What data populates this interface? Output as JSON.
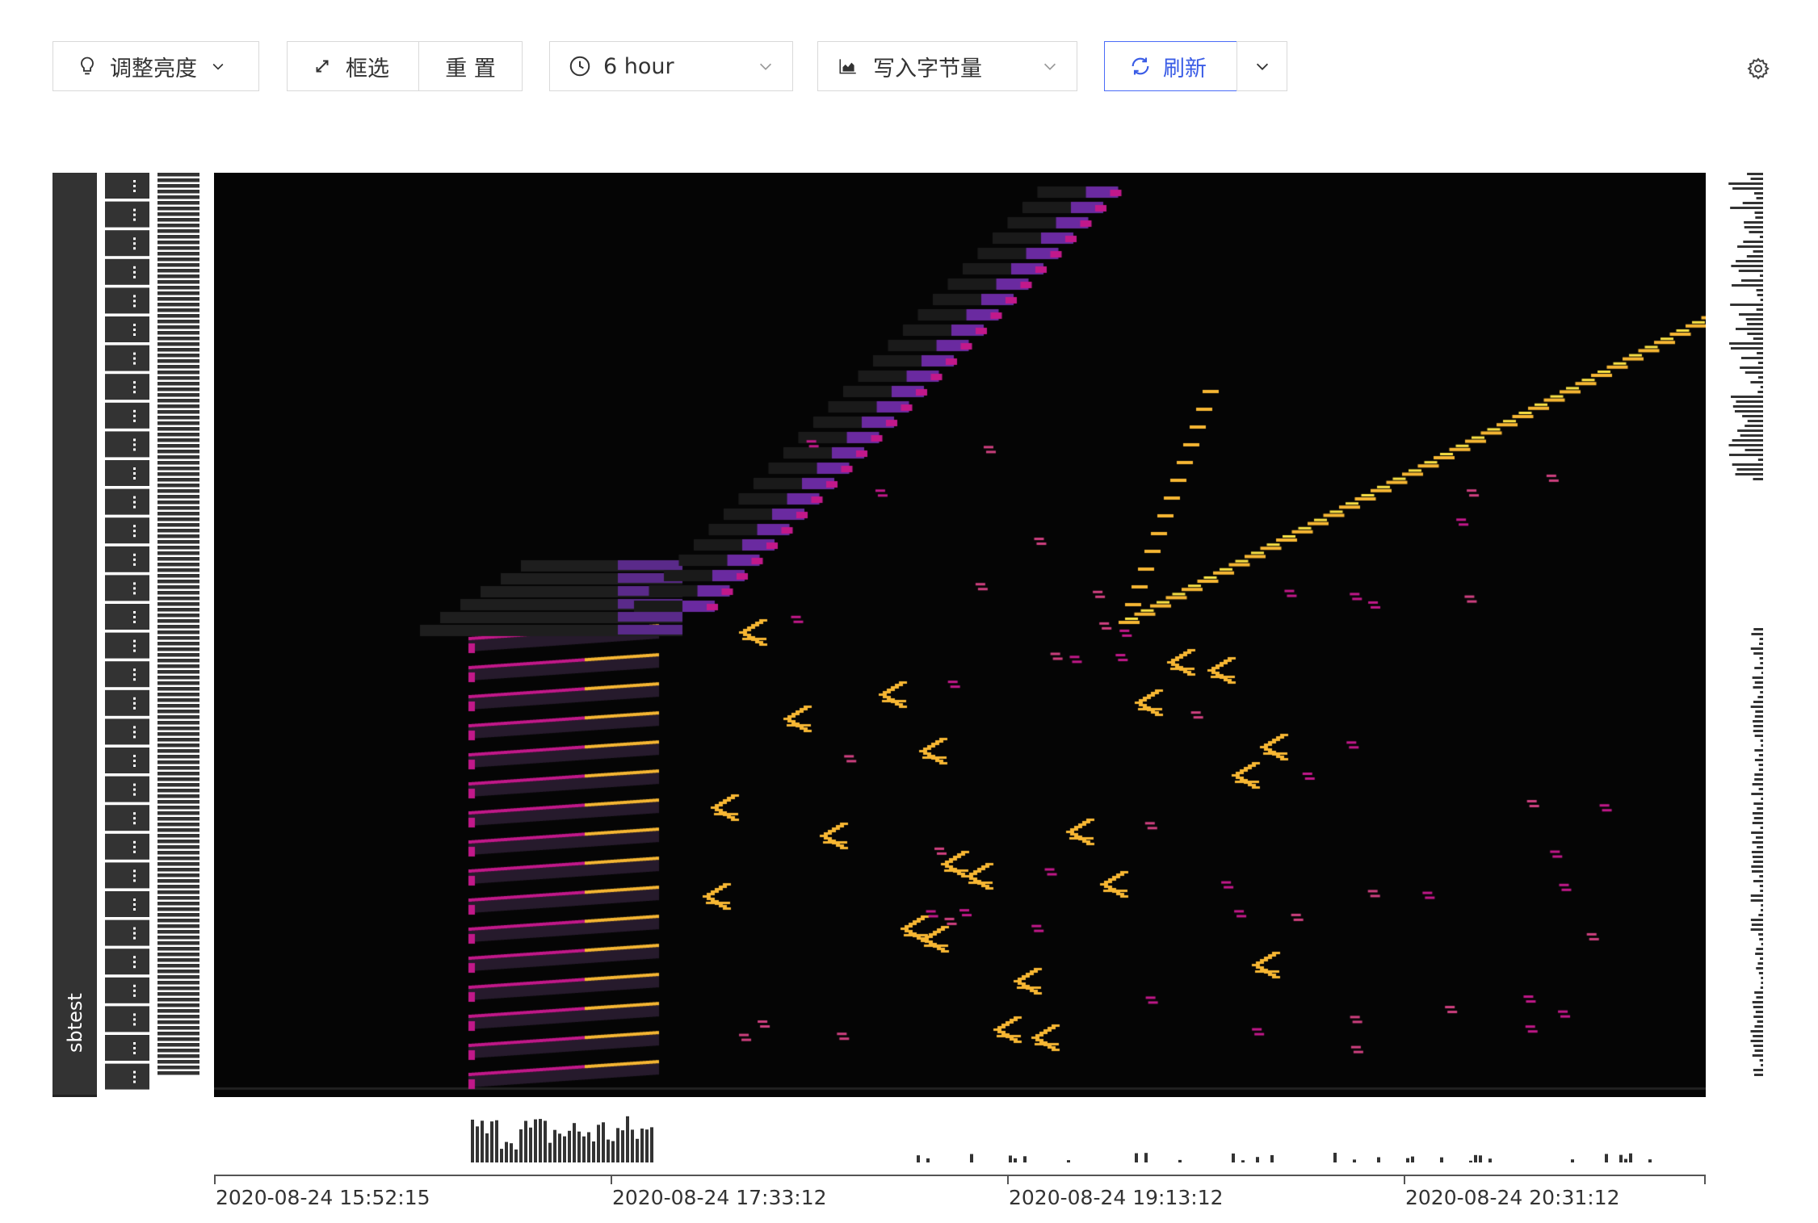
{
  "toolbar": {
    "brightness_label": "调整亮度",
    "select_label": "框选",
    "reset_label": "重 置",
    "time_range_value": "6 hour",
    "metric_value": "写入字节量",
    "refresh_label": "刷新"
  },
  "icons": {
    "brightness": "bulb-icon",
    "select": "expand-arrows-icon",
    "time": "clock-icon",
    "metric": "area-chart-icon",
    "refresh": "sync-icon",
    "settings": "gear-icon",
    "dropdown": "chevron-down-icon"
  },
  "heatmap": {
    "table_label": "sbtest",
    "x_axis_labels": [
      "2020-08-24 15:52:15",
      "2020-08-24 17:33:12",
      "2020-08-24 19:13:12",
      "2020-08-24 20:31:12"
    ],
    "colors": {
      "background": "#050505",
      "low": "#3a1f5c",
      "mid": "#c2188a",
      "high": "#f7b733",
      "peak": "#fde545"
    }
  }
}
